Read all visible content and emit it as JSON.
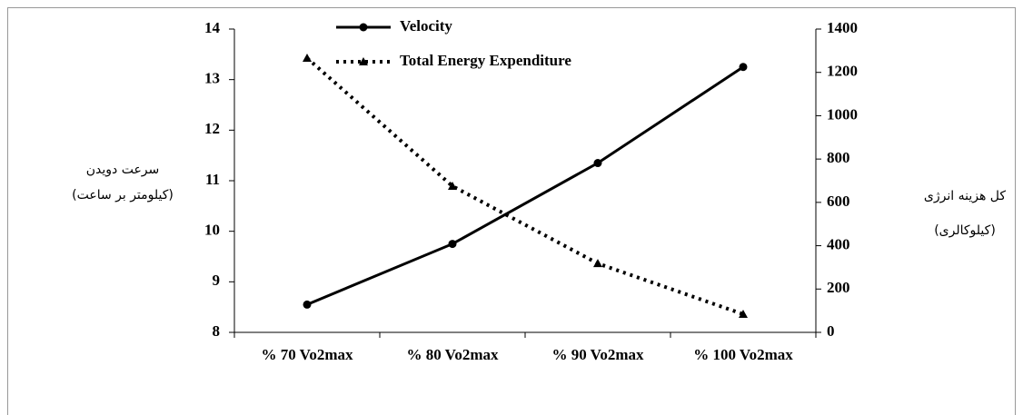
{
  "chart_data": {
    "type": "line",
    "categories": [
      "% 70 Vo2max",
      "% 80 Vo2max",
      "% 90 Vo2max",
      "% 100 Vo2max"
    ],
    "series": [
      {
        "name": "Velocity",
        "color": "#000000",
        "line_style": "solid",
        "marker": "circle",
        "values": [
          8.55,
          9.75,
          11.35,
          13.25
        ]
      },
      {
        "name": "Total Energy Expenditure",
        "color": "#000000",
        "line_style": "dotted",
        "marker": "triangle",
        "axis": "y2",
        "values": [
          1266,
          675,
          318,
          84
        ]
      }
    ],
    "ylabel": [
      "سرعت دویدن",
      "(کیلومتر بر ساعت)"
    ],
    "y2label": [
      "کل هزینه انرژی",
      "(کیلوکالری)"
    ],
    "ylim": [
      8,
      14
    ],
    "yticks": [
      8,
      9,
      10,
      11,
      12,
      13,
      14
    ],
    "y2lim": [
      0,
      1400
    ],
    "y2ticks": [
      0,
      200,
      400,
      600,
      800,
      1000,
      1200,
      1400
    ],
    "grid": false
  }
}
